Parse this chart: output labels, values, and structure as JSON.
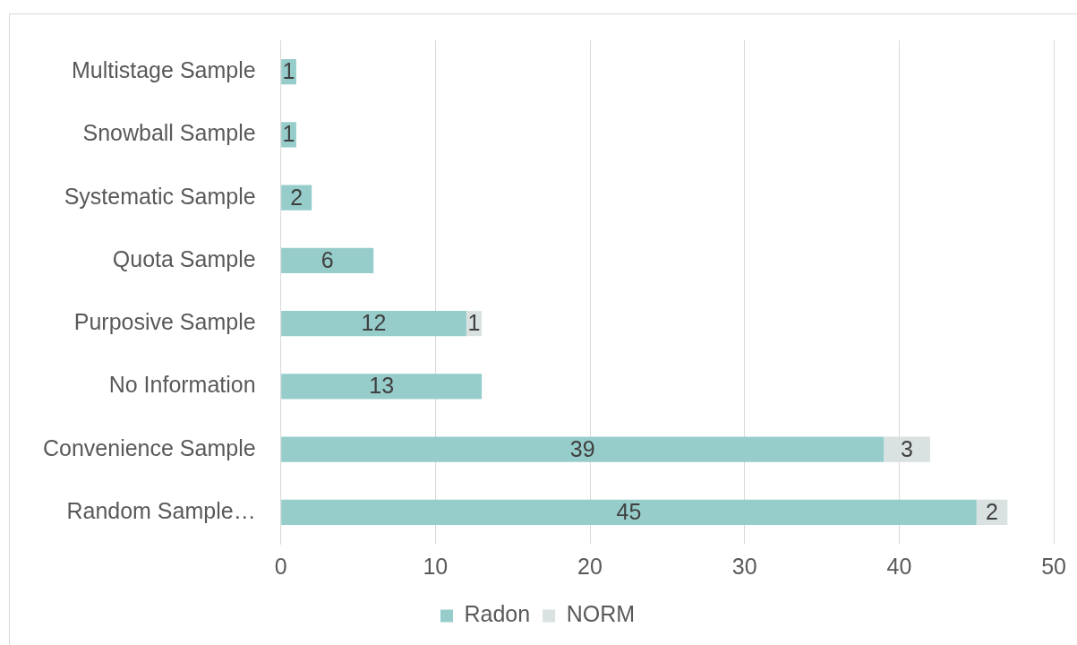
{
  "chart_data": {
    "type": "bar",
    "orientation": "horizontal",
    "stacked": true,
    "categories": [
      "Multistage Sample",
      "Snowball Sample",
      "Systematic Sample",
      "Quota Sample",
      "Purposive Sample",
      "No Information",
      "Convenience Sample",
      "Random Sample…"
    ],
    "series": [
      {
        "name": "Radon",
        "color": "#96cdcb",
        "values": [
          1,
          1,
          2,
          6,
          12,
          13,
          39,
          45
        ]
      },
      {
        "name": "NORM",
        "color": "#d9e1e1",
        "values": [
          null,
          null,
          null,
          null,
          1,
          null,
          3,
          2
        ]
      }
    ],
    "xlim": [
      0,
      50
    ],
    "xticks": [
      0,
      10,
      20,
      30,
      40,
      50
    ],
    "grid": "x",
    "legend": "bottom",
    "data_labels": true
  }
}
